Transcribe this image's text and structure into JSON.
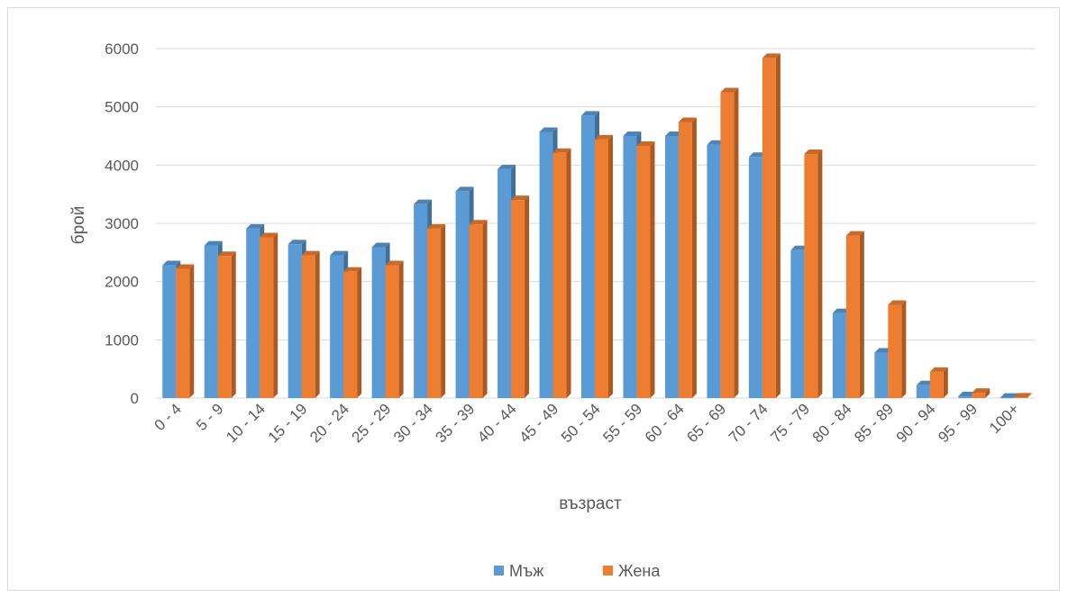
{
  "chart_data": {
    "type": "bar",
    "style": "3d-clustered-column",
    "title": "",
    "xlabel": "възраст",
    "ylabel": "брой",
    "ylim": [
      0,
      6000
    ],
    "yticks": [
      0,
      1000,
      2000,
      3000,
      4000,
      5000,
      6000
    ],
    "grid": true,
    "legend_position": "bottom",
    "categories": [
      "0 - 4",
      "5 - 9",
      "10 - 14",
      "15 - 19",
      "20 - 24",
      "25 - 29",
      "30 - 34",
      "35 - 39",
      "40 - 44",
      "45 - 49",
      "50 - 54",
      "55 - 59",
      "60 - 64",
      "65 - 69",
      "70 - 74",
      "75 - 79",
      "80 - 84",
      "85 - 89",
      "90 - 94",
      "95 - 99",
      "100+"
    ],
    "series": [
      {
        "name": "Мъж",
        "color": "#5b9bd5",
        "values": [
          2280,
          2620,
          2910,
          2640,
          2450,
          2590,
          3330,
          3550,
          3930,
          4570,
          4850,
          4500,
          4500,
          4350,
          4140,
          2540,
          1460,
          780,
          220,
          30,
          5
        ]
      },
      {
        "name": "Жена",
        "color": "#ed7d31",
        "values": [
          2220,
          2440,
          2760,
          2450,
          2170,
          2280,
          2910,
          2980,
          3400,
          4210,
          4440,
          4330,
          4740,
          5250,
          5840,
          4190,
          2790,
          1600,
          450,
          90,
          10
        ]
      }
    ]
  }
}
